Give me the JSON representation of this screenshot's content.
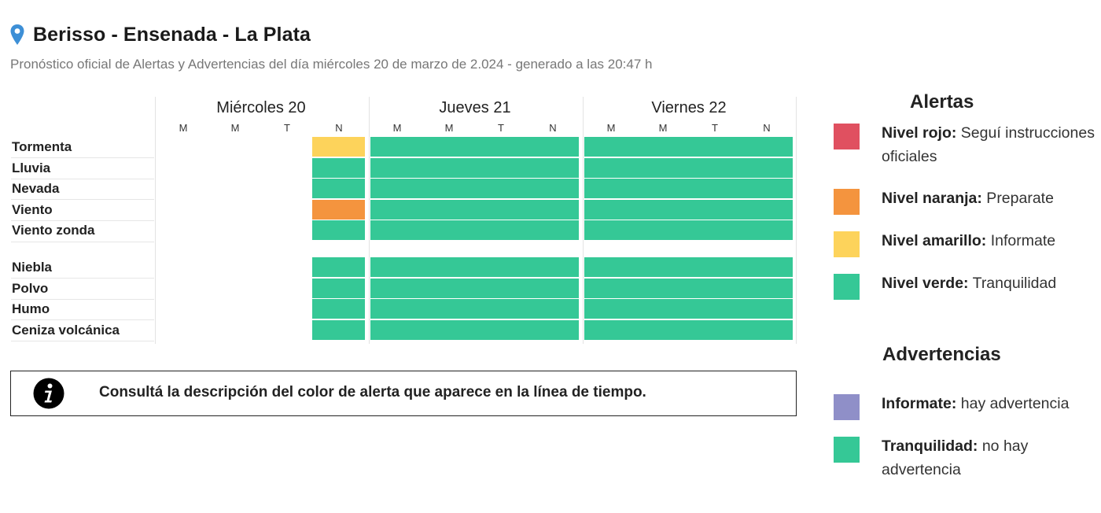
{
  "header": {
    "location": "Berisso - Ensenada - La Plata",
    "subtitle": "Pronóstico oficial de Alertas y Advertencias del día miércoles 20 de marzo de 2.024 - generado a las 20:47 h",
    "pin_icon": "map-pin-icon"
  },
  "colors": {
    "rojo": "#e05060",
    "naranja": "#f4943e",
    "amarillo": "#fdd35b",
    "verde": "#35c896",
    "violeta": "#8f8fc8"
  },
  "timeline": {
    "days": [
      {
        "label": "Miércoles 20",
        "slots": [
          "M",
          "M",
          "T",
          "N"
        ]
      },
      {
        "label": "Jueves 21",
        "slots": [
          "M",
          "M",
          "T",
          "N"
        ]
      },
      {
        "label": "Viernes 22",
        "slots": [
          "M",
          "M",
          "T",
          "N"
        ]
      }
    ],
    "groups": [
      {
        "rows": [
          {
            "label": "Tormenta",
            "levels": [
              null,
              null,
              null,
              "amarillo",
              "verde",
              "verde",
              "verde",
              "verde",
              "verde",
              "verde",
              "verde",
              "verde"
            ]
          },
          {
            "label": "Lluvia",
            "levels": [
              null,
              null,
              null,
              "verde",
              "verde",
              "verde",
              "verde",
              "verde",
              "verde",
              "verde",
              "verde",
              "verde"
            ]
          },
          {
            "label": "Nevada",
            "levels": [
              null,
              null,
              null,
              "verde",
              "verde",
              "verde",
              "verde",
              "verde",
              "verde",
              "verde",
              "verde",
              "verde"
            ]
          },
          {
            "label": "Viento",
            "levels": [
              null,
              null,
              null,
              "naranja",
              "verde",
              "verde",
              "verde",
              "verde",
              "verde",
              "verde",
              "verde",
              "verde"
            ]
          },
          {
            "label": "Viento zonda",
            "levels": [
              null,
              null,
              null,
              "verde",
              "verde",
              "verde",
              "verde",
              "verde",
              "verde",
              "verde",
              "verde",
              "verde"
            ]
          }
        ]
      },
      {
        "rows": [
          {
            "label": "Niebla",
            "levels": [
              null,
              null,
              null,
              "verde",
              "verde",
              "verde",
              "verde",
              "verde",
              "verde",
              "verde",
              "verde",
              "verde"
            ]
          },
          {
            "label": "Polvo",
            "levels": [
              null,
              null,
              null,
              "verde",
              "verde",
              "verde",
              "verde",
              "verde",
              "verde",
              "verde",
              "verde",
              "verde"
            ]
          },
          {
            "label": "Humo",
            "levels": [
              null,
              null,
              null,
              "verde",
              "verde",
              "verde",
              "verde",
              "verde",
              "verde",
              "verde",
              "verde",
              "verde"
            ]
          },
          {
            "label": "Ceniza volcánica",
            "levels": [
              null,
              null,
              null,
              "verde",
              "verde",
              "verde",
              "verde",
              "verde",
              "verde",
              "verde",
              "verde",
              "verde"
            ]
          }
        ]
      }
    ]
  },
  "info": {
    "icon": "info-icon",
    "text": "Consultá la descripción del color de alerta que aparece en la línea de tiempo."
  },
  "legend": {
    "alertas_title": "Alertas",
    "alertas": [
      {
        "color": "rojo",
        "bold": "Nivel rojo:",
        "text": " Seguí instrucciones oficiales"
      },
      {
        "color": "naranja",
        "bold": "Nivel naranja:",
        "text": " Preparate"
      },
      {
        "color": "amarillo",
        "bold": "Nivel amarillo:",
        "text": " Informate"
      },
      {
        "color": "verde",
        "bold": "Nivel verde:",
        "text": " Tranquilidad"
      }
    ],
    "advertencias_title": "Advertencias",
    "advertencias": [
      {
        "color": "violeta",
        "bold": "Informate:",
        "text": " hay advertencia"
      },
      {
        "color": "verde",
        "bold": "Tranquilidad:",
        "text": " no hay advertencia"
      }
    ]
  }
}
